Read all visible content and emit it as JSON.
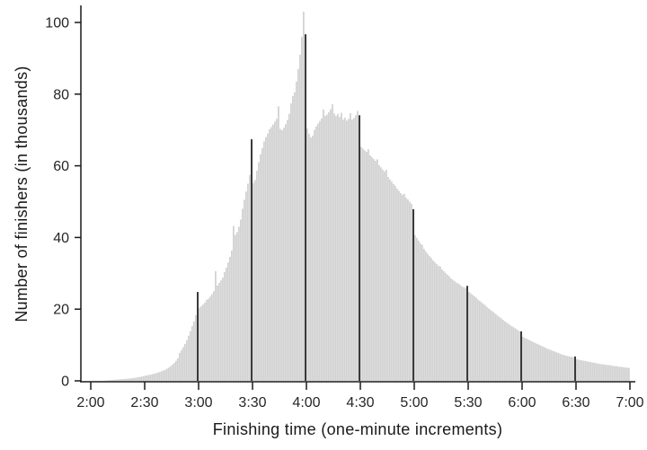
{
  "chart_data": {
    "type": "bar",
    "subtype": "histogram",
    "xlabel": "Finishing time (one-minute increments)",
    "ylabel": "Number of finishers (in thousands)",
    "x_tick_labels": [
      "2:00",
      "2:30",
      "3:00",
      "3:30",
      "4:00",
      "4:30",
      "5:00",
      "5:30",
      "6:00",
      "6:30",
      "7:00"
    ],
    "x_tick_minutes": [
      120,
      150,
      180,
      210,
      240,
      270,
      300,
      330,
      360,
      390,
      420
    ],
    "y_ticks": [
      0,
      20,
      40,
      60,
      80,
      100
    ],
    "ylim": [
      0,
      105
    ],
    "x_start_minute": 121,
    "bin_width_minutes": 1,
    "dark_minutes": [
      180,
      210,
      240,
      270,
      300,
      330,
      360,
      390
    ],
    "colors": {
      "bar": "#d2d2d2",
      "bar_edge": "#e2e2e2",
      "spike": "#3a3a3a",
      "axis": "#1a1a1a",
      "text": "#262626"
    },
    "values": [
      0,
      0,
      0,
      0,
      0,
      0,
      0,
      0.05,
      0.1,
      0.15,
      0.18,
      0.2,
      0.25,
      0.3,
      0.35,
      0.4,
      0.45,
      0.45,
      0.5,
      0.55,
      0.6,
      0.65,
      0.7,
      0.75,
      0.85,
      0.9,
      1.0,
      1.1,
      1.2,
      1.35,
      1.45,
      1.55,
      1.65,
      1.75,
      1.9,
      2.0,
      2.15,
      2.3,
      2.5,
      2.7,
      2.9,
      3.1,
      3.4,
      3.7,
      4.1,
      4.5,
      5.0,
      5.6,
      6.3,
      7.8,
      8.6,
      9.4,
      10.3,
      11.3,
      12.6,
      13.9,
      15.3,
      16.6,
      18.3,
      24.8,
      20.3,
      20.8,
      21.3,
      21.8,
      22.6,
      22.9,
      23.5,
      24.2,
      25.0,
      30.6,
      26.6,
      27.3,
      28.0,
      28.8,
      30.3,
      31.6,
      33.0,
      34.6,
      36.4,
      43.2,
      40.7,
      41.5,
      43.0,
      45.0,
      48.0,
      50.5,
      52.8,
      55.0,
      57.5,
      67.4,
      55.2,
      56.0,
      58.6,
      61.0,
      63.2,
      64.9,
      66.8,
      68.0,
      69.0,
      70.2,
      70.8,
      71.5,
      72.3,
      73.1,
      76.6,
      70.3,
      69.9,
      70.6,
      71.6,
      72.8,
      74.5,
      77.4,
      79.5,
      80.5,
      83.5,
      87.0,
      91.0,
      96.0,
      103.0,
      96.7,
      70.4,
      68.9,
      67.9,
      68.4,
      70.0,
      71.0,
      71.8,
      72.5,
      73.2,
      75.7,
      73.9,
      74.3,
      75.0,
      75.8,
      77.2,
      74.6,
      73.9,
      74.5,
      73.6,
      74.8,
      72.9,
      73.4,
      72.6,
      73.1,
      74.7,
      72.9,
      73.3,
      74.1,
      75.3,
      74.1,
      65.3,
      64.8,
      64.3,
      63.9,
      64.6,
      62.9,
      62.4,
      61.9,
      61.4,
      61.8,
      60.2,
      59.6,
      58.9,
      58.4,
      58.9,
      56.9,
      56.2,
      55.6,
      54.9,
      54.4,
      53.6,
      53.0,
      52.4,
      51.9,
      52.2,
      51.1,
      50.6,
      50.0,
      49.4,
      47.9,
      40.7,
      39.9,
      39.1,
      38.3,
      37.9,
      36.8,
      36.1,
      35.4,
      34.8,
      34.3,
      33.6,
      33.1,
      32.6,
      32.1,
      31.9,
      31.1,
      30.6,
      30.1,
      29.6,
      29.2,
      28.6,
      28.2,
      27.8,
      27.4,
      27.2,
      26.8,
      26.4,
      26.1,
      25.9,
      26.5,
      24.8,
      24.4,
      24.0,
      23.6,
      23.2,
      22.7,
      22.3,
      21.9,
      21.5,
      21.1,
      20.6,
      20.2,
      19.8,
      19.4,
      19.0,
      18.6,
      18.2,
      17.8,
      17.4,
      17.0,
      16.6,
      16.2,
      15.9,
      15.5,
      15.2,
      14.9,
      14.6,
      14.2,
      13.9,
      13.8,
      12.3,
      12.0,
      11.8,
      11.5,
      11.3,
      11.0,
      10.8,
      10.5,
      10.3,
      10.1,
      9.8,
      9.6,
      9.4,
      9.1,
      8.9,
      8.7,
      8.5,
      8.3,
      8.1,
      7.9,
      7.7,
      7.5,
      7.3,
      7.2,
      7.0,
      6.9,
      6.8,
      6.7,
      6.6,
      6.8,
      6.0,
      5.9,
      5.8,
      5.7,
      5.6,
      5.5,
      5.4,
      5.3,
      5.2,
      5.1,
      5.0,
      4.9,
      4.8,
      4.7,
      4.6,
      4.6,
      4.5,
      4.4,
      4.4,
      4.3,
      4.2,
      4.1,
      4.1,
      4.0,
      3.9,
      3.9,
      3.8,
      3.7,
      3.7,
      3.6
    ]
  }
}
